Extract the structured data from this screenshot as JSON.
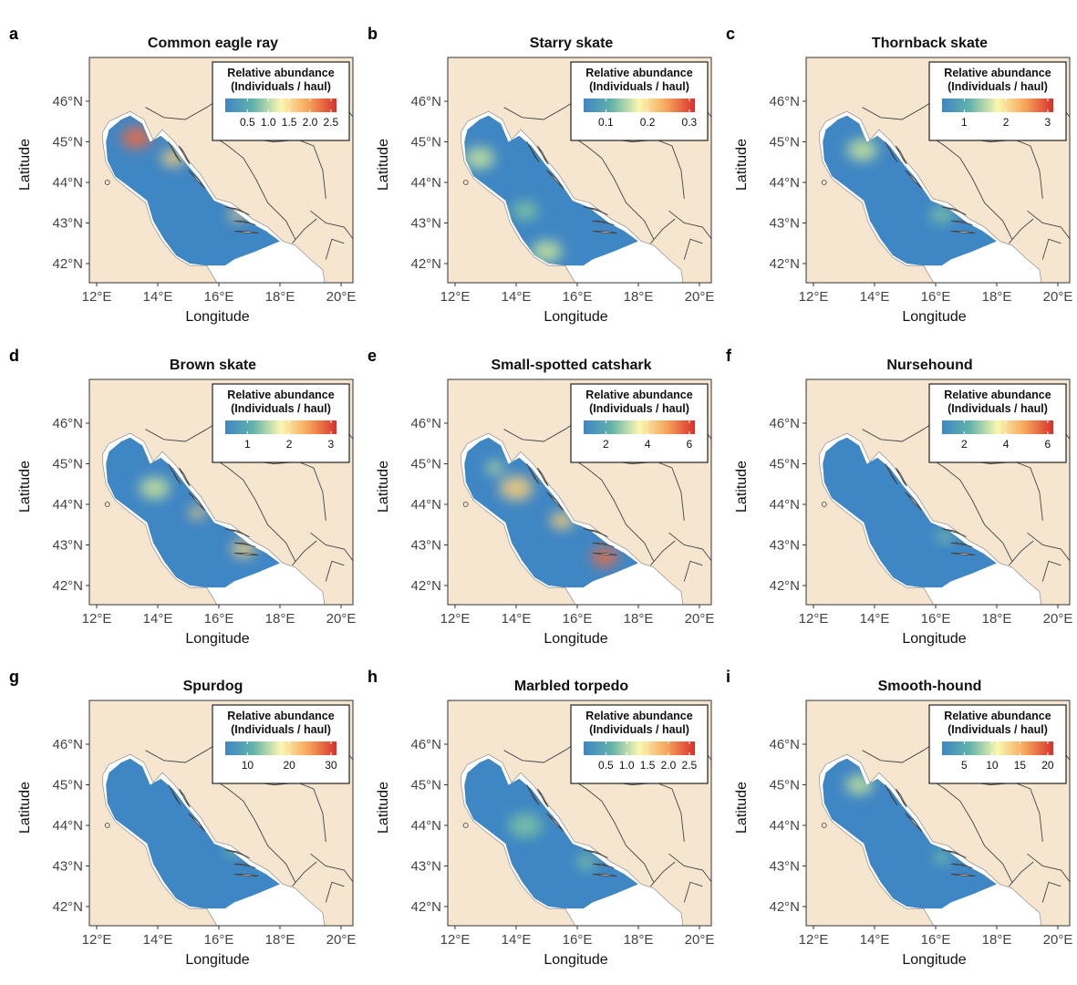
{
  "figure": {
    "x_axis_label": "Longitude",
    "y_axis_label": "Latitude",
    "lat_ticks": [
      "46°N",
      "45°N",
      "44°N",
      "43°N",
      "42°N"
    ],
    "lon_ticks": [
      "12°E",
      "14°E",
      "16°E",
      "18°E",
      "20°E"
    ],
    "legend_title_line1": "Relative abundance",
    "legend_title_line2": "(Individuals / haul)",
    "colors": {
      "land": "#f7e6cf",
      "sea_outside": "#ffffff",
      "border": "#444444",
      "low": "#3f86c4",
      "high": "#d7302b"
    }
  },
  "panels": [
    {
      "letter": "a",
      "title": "Common eagle ray",
      "legend_ticks": [
        "0.5",
        "1.0",
        "1.5",
        "2.0",
        "2.5"
      ]
    },
    {
      "letter": "b",
      "title": "Starry skate",
      "legend_ticks": [
        "0.1",
        "0.2",
        "0.3"
      ]
    },
    {
      "letter": "c",
      "title": "Thornback skate",
      "legend_ticks": [
        "1",
        "2",
        "3"
      ]
    },
    {
      "letter": "d",
      "title": "Brown skate",
      "legend_ticks": [
        "1",
        "2",
        "3"
      ]
    },
    {
      "letter": "e",
      "title": "Small-spotted catshark",
      "legend_ticks": [
        "2",
        "4",
        "6"
      ]
    },
    {
      "letter": "f",
      "title": "Nursehound",
      "legend_ticks": [
        "2",
        "4",
        "6"
      ]
    },
    {
      "letter": "g",
      "title": "Spurdog",
      "legend_ticks": [
        "10",
        "20",
        "30"
      ]
    },
    {
      "letter": "h",
      "title": "Marbled torpedo",
      "legend_ticks": [
        "0.5",
        "1.0",
        "1.5",
        "2.0",
        "2.5"
      ]
    },
    {
      "letter": "i",
      "title": "Smooth-hound",
      "legend_ticks": [
        "5",
        "10",
        "15",
        "20"
      ]
    }
  ]
}
